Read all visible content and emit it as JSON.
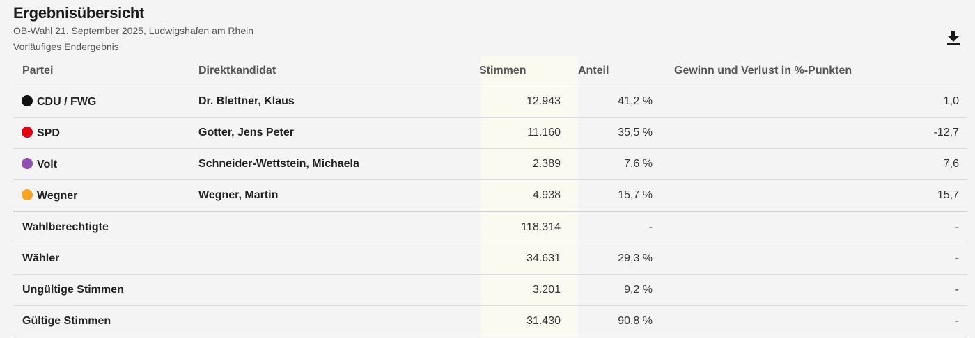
{
  "header": {
    "title": "Ergebnisübersicht",
    "subtitle": "OB-Wahl 21. September 2025, Ludwigshafen am Rhein",
    "status": "Vorläufiges Endergebnis",
    "download_icon": "download-icon"
  },
  "table": {
    "columns": [
      "Partei",
      "Direktkandidat",
      "Stimmen",
      "Anteil",
      "Gewinn und Verlust in %-Punkten"
    ],
    "parties": [
      {
        "party": "CDU / FWG",
        "color": "#111111",
        "candidate": "Dr. Blettner, Klaus",
        "votes": "12.943",
        "share": "41,2 %",
        "change": "1,0"
      },
      {
        "party": "SPD",
        "color": "#e3000f",
        "candidate": "Gotter, Jens Peter",
        "votes": "11.160",
        "share": "35,5 %",
        "change": "-12,7"
      },
      {
        "party": "Volt",
        "color": "#8f4fb0",
        "candidate": "Schneider-Wettstein, Michaela",
        "votes": "2.389",
        "share": "7,6 %",
        "change": "7,6"
      },
      {
        "party": "Wegner",
        "color": "#f5a623",
        "candidate": "Wegner, Martin",
        "votes": "4.938",
        "share": "15,7 %",
        "change": "15,7"
      }
    ],
    "summary": [
      {
        "label": "Wahlberechtigte",
        "votes": "118.314",
        "share": "-",
        "change": "-"
      },
      {
        "label": "Wähler",
        "votes": "34.631",
        "share": "29,3 %",
        "change": "-"
      },
      {
        "label": "Ungültige Stimmen",
        "votes": "3.201",
        "share": "9,2 %",
        "change": "-"
      },
      {
        "label": "Gültige Stimmen",
        "votes": "31.430",
        "share": "90,8 %",
        "change": "-"
      }
    ]
  }
}
